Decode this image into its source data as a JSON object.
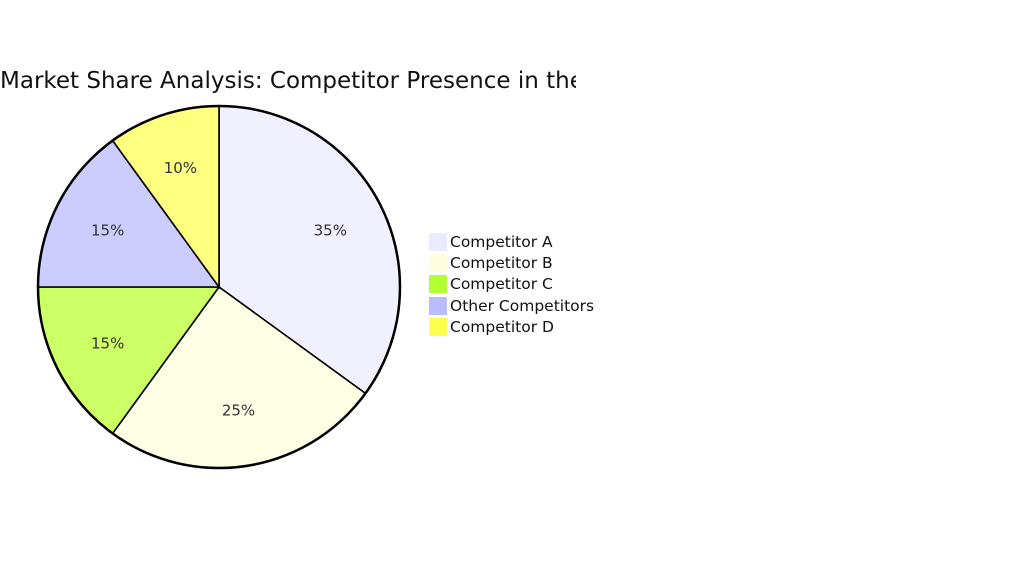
{
  "chart_data": {
    "type": "pie",
    "title": "Market Share Analysis: Competitor Presence in the Industry",
    "slices": [
      {
        "name": "Competitor A",
        "value": 35,
        "label": "35%",
        "color": "#f0f0ff"
      },
      {
        "name": "Competitor B",
        "value": 25,
        "label": "25%",
        "color": "#ffffe6"
      },
      {
        "name": "Competitor C",
        "value": 15,
        "label": "15%",
        "color": "#ccff66"
      },
      {
        "name": "Other Competitors",
        "value": 15,
        "label": "15%",
        "color": "#ccccff"
      },
      {
        "name": "Competitor D",
        "value": 10,
        "label": "10%",
        "color": "#ffff80"
      }
    ],
    "legend": {
      "placement": "right",
      "entries": [
        {
          "name": "Competitor A",
          "color": "#ebebff"
        },
        {
          "name": "Competitor B",
          "color": "#ffffe0"
        },
        {
          "name": "Competitor C",
          "color": "#b3ff33"
        },
        {
          "name": "Other Competitors",
          "color": "#bbbbff"
        },
        {
          "name": "Competitor D",
          "color": "#ffff4d"
        }
      ]
    }
  }
}
